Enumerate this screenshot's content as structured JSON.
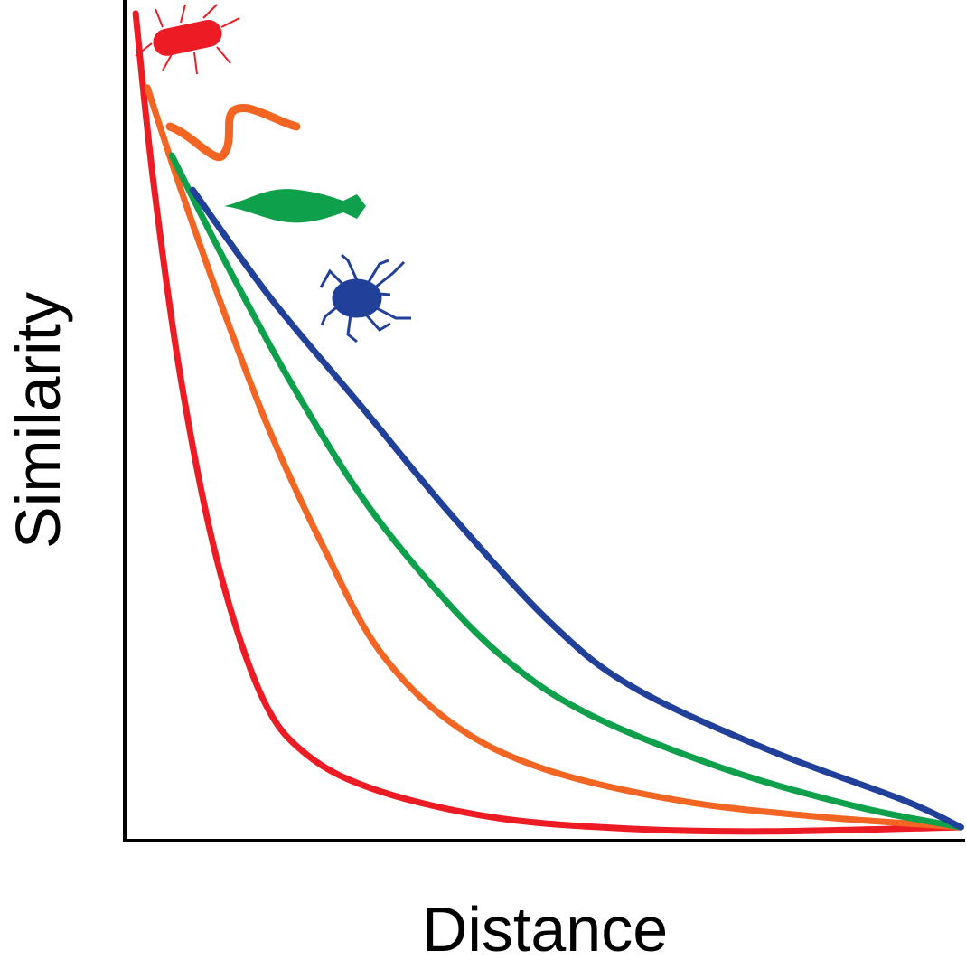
{
  "chart_data": {
    "type": "line",
    "x_label": "Distance",
    "y_label": "Similarity",
    "xlim": [
      0,
      100
    ],
    "ylim": [
      0,
      100
    ],
    "series": [
      {
        "color": "#ed1c24",
        "x": [
          1.3,
          3.4,
          6.7,
          11,
          16.3,
          21.7,
          30.3,
          44.3,
          60.4,
          76.6,
          99.5
        ],
        "values": [
          98.4,
          78.5,
          54.8,
          33.3,
          17.2,
          10.2,
          5.9,
          2.7,
          1.4,
          1.1,
          1.6
        ]
      },
      {
        "color": "#f26522",
        "x": [
          2.7,
          6.7,
          12,
          17.4,
          23.9,
          30.3,
          38.9,
          49.7,
          65.8,
          81.9,
          99.5
        ],
        "values": [
          89.6,
          77.4,
          62.4,
          48.4,
          34.4,
          22.6,
          14,
          8.6,
          4.8,
          2.9,
          1.6
        ]
      },
      {
        "color": "#0ea04b",
        "x": [
          5.6,
          12,
          19.6,
          28.2,
          36.8,
          45.4,
          55.1,
          71.2,
          87.3,
          99.5
        ],
        "values": [
          81.5,
          68.8,
          54.8,
          40.9,
          30.1,
          21.5,
          15.1,
          8.6,
          4,
          1.6
        ]
      },
      {
        "color": "#21409a",
        "x": [
          8.1,
          17.4,
          28.2,
          38.9,
          50.8,
          60.4,
          76.6,
          92.7,
          99.5
        ],
        "values": [
          77.4,
          64.5,
          51.6,
          38.7,
          25.8,
          18.3,
          10.8,
          4.8,
          1.6
        ]
      }
    ]
  }
}
